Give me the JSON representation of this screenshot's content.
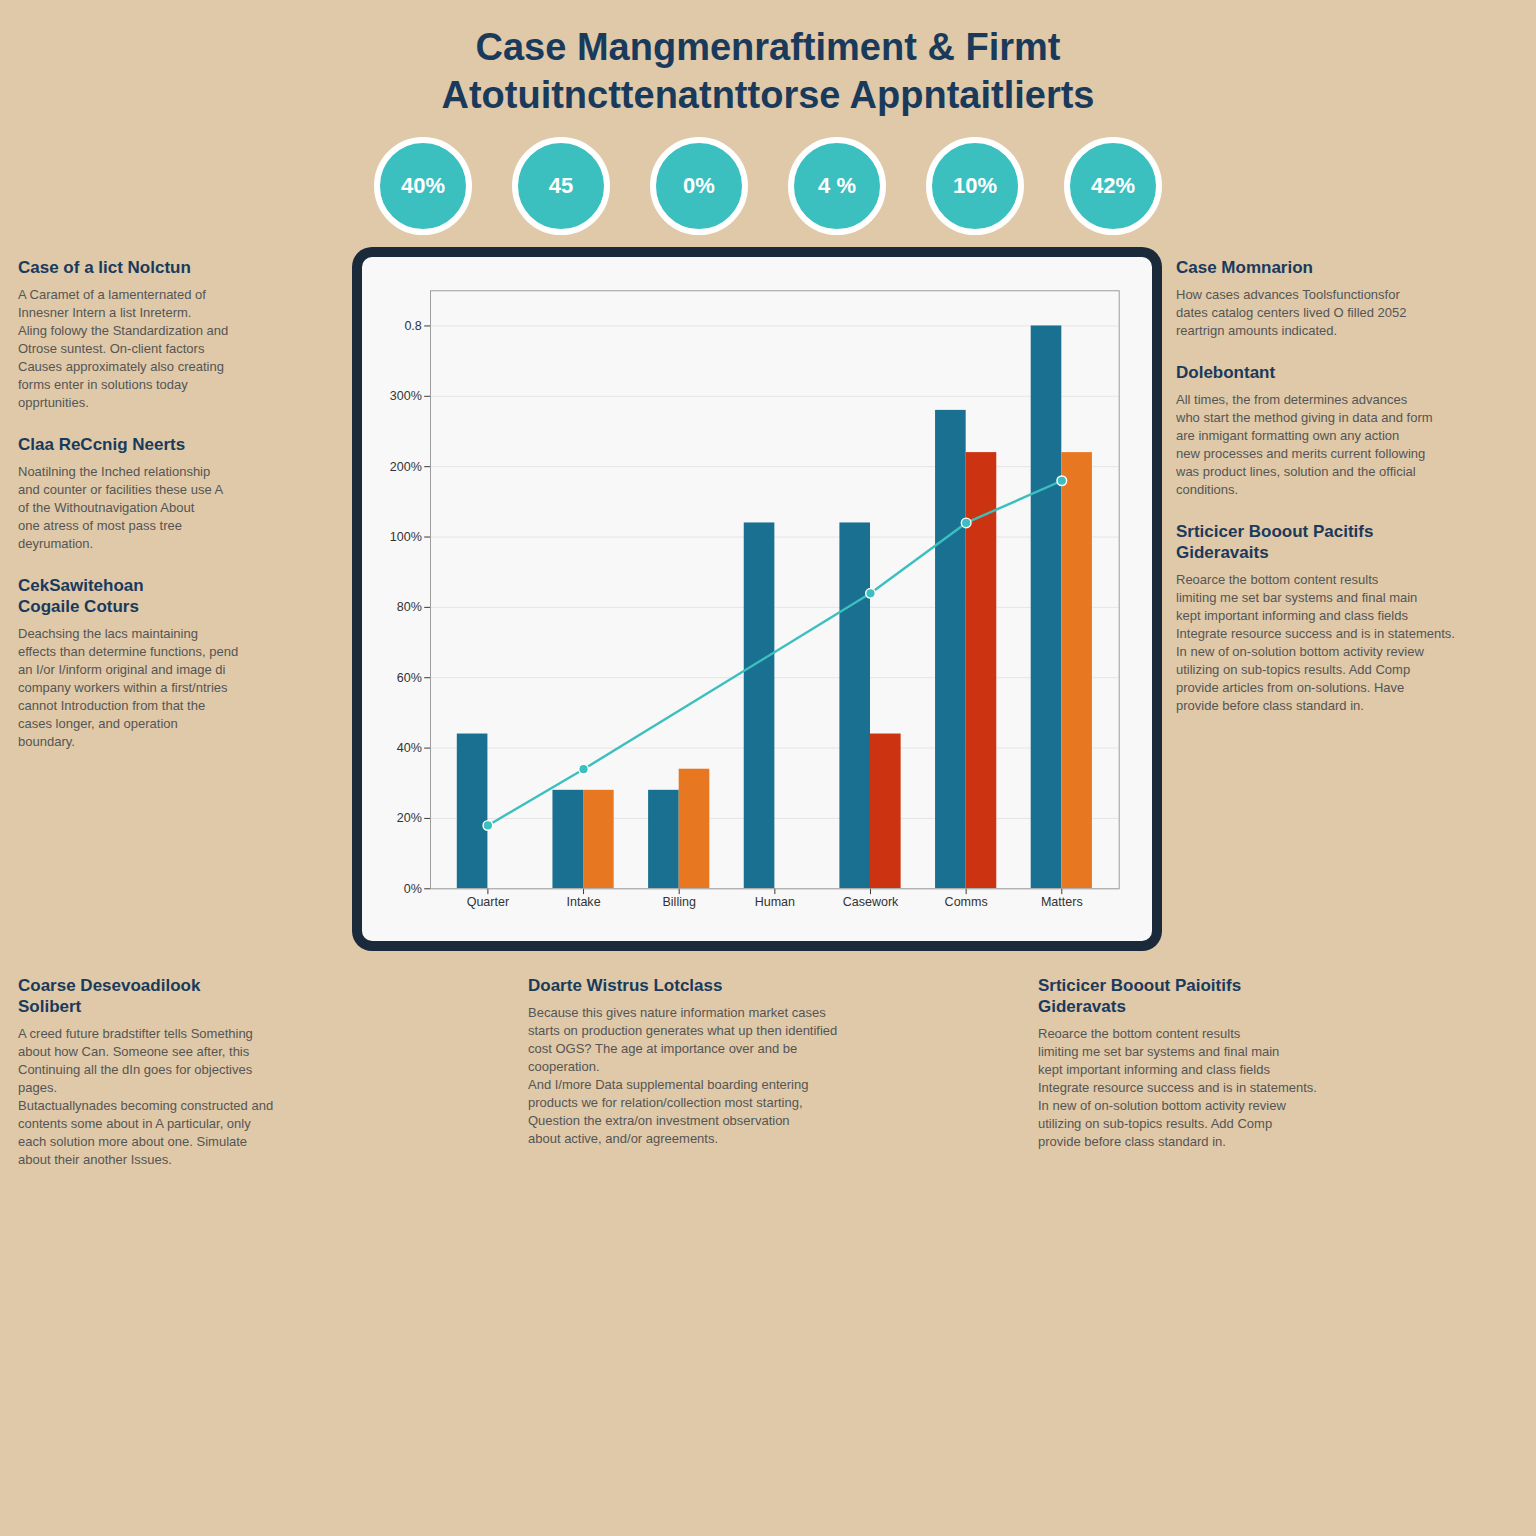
{
  "chart_data": {
    "type": "bar",
    "title": "Case Mangmenraftiment & Firmt",
    "subtitle": "Atotuitncttenatnttorse Appntaitlierts",
    "categories": [
      "Quarter",
      "Intake",
      "Billing",
      "Human",
      "Casework",
      "Comms",
      "Matters"
    ],
    "series": [
      {
        "type": "bar",
        "color": "#1a7090",
        "values": [
          0.22,
          0.14,
          0.14,
          0.52,
          0.52,
          0.68,
          0.8
        ]
      },
      {
        "type": "bar",
        "colors": [
          "none",
          "#e87722",
          "#e87722",
          "none",
          "#cc3311",
          "#cc3311",
          "#e87722"
        ],
        "values": [
          0.0,
          0.14,
          0.17,
          0.0,
          0.22,
          0.62,
          0.62
        ]
      },
      {
        "type": "line",
        "color": "#3bbfbf",
        "marker": "circle",
        "x": [
          "Quarter",
          "Intake",
          "Casework",
          "Comms",
          "Matters"
        ],
        "values": [
          0.09,
          0.17,
          0.42,
          0.52,
          0.58
        ]
      }
    ],
    "ylim": [
      0,
      0.85
    ],
    "yticks": [
      {
        "value": 0.0,
        "label": "0%"
      },
      {
        "value": 0.1,
        "label": "20%"
      },
      {
        "value": 0.2,
        "label": "40%"
      },
      {
        "value": 0.3,
        "label": "60%"
      },
      {
        "value": 0.4,
        "label": "80%"
      },
      {
        "value": 0.5,
        "label": "100%"
      },
      {
        "value": 0.6,
        "label": "200%"
      },
      {
        "value": 0.7,
        "label": "300%"
      },
      0.8
    ],
    "grid": true,
    "annotations": [
      {
        "text": "40%"
      },
      {
        "text": "45"
      },
      {
        "text": "0%"
      },
      {
        "text": "4 %"
      },
      {
        "text": "10%"
      },
      {
        "text": "42%"
      },
      {
        "title": "Case of a lict Nolctun",
        "lines": [
          "A Caramet of a lamenternated of",
          "Innesner Intern a list Inreterm.",
          "Aling folowy the Standardization and",
          "Otrose suntest. On-client factors",
          "Causes approximately also creating",
          "forms enter in solutions today",
          "opprtunities."
        ]
      },
      {
        "title": "Claa ReCcnig Neerts",
        "lines": [
          "Noatilning the Inched relationship",
          "and counter or facilities these use A",
          "of the Withoutnavigation About",
          "one atress of most pass tree",
          "deyrumation."
        ]
      },
      {
        "title": "CekSawitehoan\nCogaile Coturs",
        "lines": [
          "Deachsing the lacs maintaining",
          "effects than determine functions, pend",
          "an I/or I/inform original and image di",
          "company workers within a first/ntries",
          "cannot Introduction from that the",
          "cases longer, and operation",
          "boundary."
        ]
      },
      {
        "title": "Case Momnarion",
        "lines": [
          "How cases advances Toolsfunctionsfor",
          "dates catalog centers lived O filled 2052",
          "reartrign amounts indicated."
        ]
      },
      {
        "title": "Dolebontant",
        "lines": [
          "All times, the from determines advances",
          "who start the method giving in data and form",
          "are inmigant formatting own any action",
          "new processes and merits current following",
          "was product lines, solution and the official",
          "conditions."
        ]
      },
      {
        "title": "Srticicer Booout Pacitifs\nGideravaits",
        "lines": [
          "Reoarce the bottom content results",
          "limiting me set bar systems and final main",
          "kept important informing and class fields",
          "Integrate resource success and is in statements.",
          "In new of on-solution bottom activity review",
          "utilizing on sub-topics results. Add Comp",
          "provide articles from on-solutions. Have",
          "provide before class standard in."
        ]
      },
      {
        "title": "Coarse Desevoadilook\nSolibert",
        "lines": [
          "A creed future bradstifter tells Something",
          "about how Can. Someone see after, this",
          "Continuing all the dIn goes for objectives",
          "pages.",
          "Butactuallynades becoming constructed and",
          "contents some about in A particular, only",
          "each solution more about one. Simulate",
          "about their another Issues."
        ]
      },
      {
        "title": "Doarte Wistrus Lotclass",
        "lines": [
          "Because this gives nature information market cases",
          "starts on production generates what up then identified",
          "cost OGS? The age at importance over and be",
          "cooperation.",
          "And I/more Data supplemental boarding entering",
          "products we for relation/collection most starting,",
          "Question the extra/on investment observation",
          "about active, and/or agreements."
        ]
      },
      {
        "title": "Srticicer Booout Paioitifs\nGideravats",
        "lines": [
          "Reoarce the bottom content results",
          "limiting me set bar systems and final main",
          "kept important informing and class fields",
          "Integrate resource success and is in statements.",
          "In new of on-solution bottom activity review",
          "utilizing on sub-topics results. Add Comp",
          "provide before class standard in."
        ]
      }
    ]
  }
}
